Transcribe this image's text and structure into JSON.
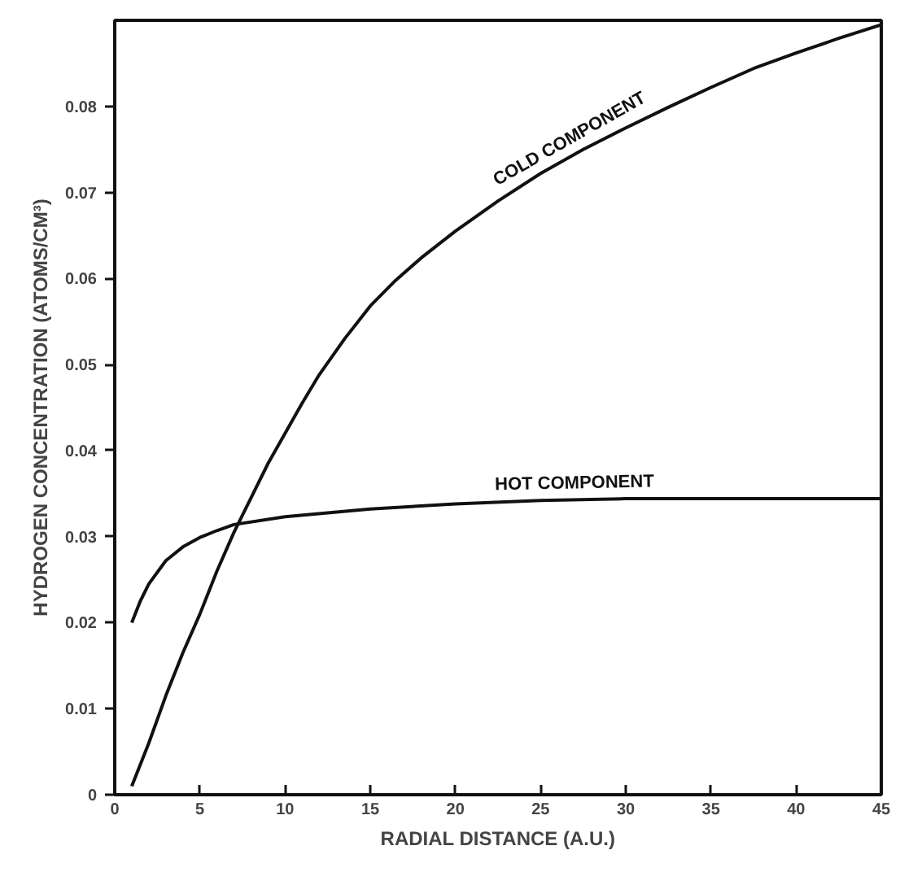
{
  "chart_data": {
    "type": "line",
    "xlabel": "RADIAL DISTANCE (A.U.)",
    "ylabel": "HYDROGEN CONCENTRATION (ATOMS/CM³)",
    "xlim": [
      0,
      45
    ],
    "ylim": [
      0,
      0.09
    ],
    "xticks": [
      0,
      5,
      10,
      15,
      20,
      25,
      30,
      35,
      40,
      45
    ],
    "yticks": [
      0,
      0.01,
      0.02,
      0.03,
      0.04,
      0.05,
      0.06,
      0.07,
      0.08
    ],
    "grid": false,
    "marker": "none",
    "line_style": "solid",
    "series": [
      {
        "name": "COLD COMPONENT",
        "color": "#111111",
        "x": [
          1,
          2,
          3,
          4,
          5,
          6,
          7,
          8,
          9,
          10,
          11,
          12,
          13.5,
          15,
          16.5,
          18,
          20,
          22.5,
          25,
          27.5,
          30,
          32.5,
          35,
          37.5,
          40,
          42.5,
          45
        ],
        "values": [
          0.001,
          0.006,
          0.0115,
          0.0165,
          0.021,
          0.026,
          0.0305,
          0.0345,
          0.0385,
          0.042,
          0.0455,
          0.0488,
          0.053,
          0.0568,
          0.0598,
          0.0624,
          0.0655,
          0.069,
          0.0722,
          0.075,
          0.0775,
          0.0799,
          0.0822,
          0.0844,
          0.0862,
          0.0879,
          0.0895
        ]
      },
      {
        "name": "HOT COMPONENT",
        "color": "#111111",
        "x": [
          1,
          1.5,
          2,
          3,
          4,
          5,
          6,
          7,
          10,
          15,
          20,
          25,
          30,
          35,
          40,
          45
        ],
        "values": [
          0.02,
          0.0225,
          0.0245,
          0.0272,
          0.0288,
          0.0299,
          0.0307,
          0.0314,
          0.0323,
          0.0332,
          0.0338,
          0.0342,
          0.0344,
          0.0344,
          0.0344,
          0.0344
        ]
      }
    ]
  }
}
